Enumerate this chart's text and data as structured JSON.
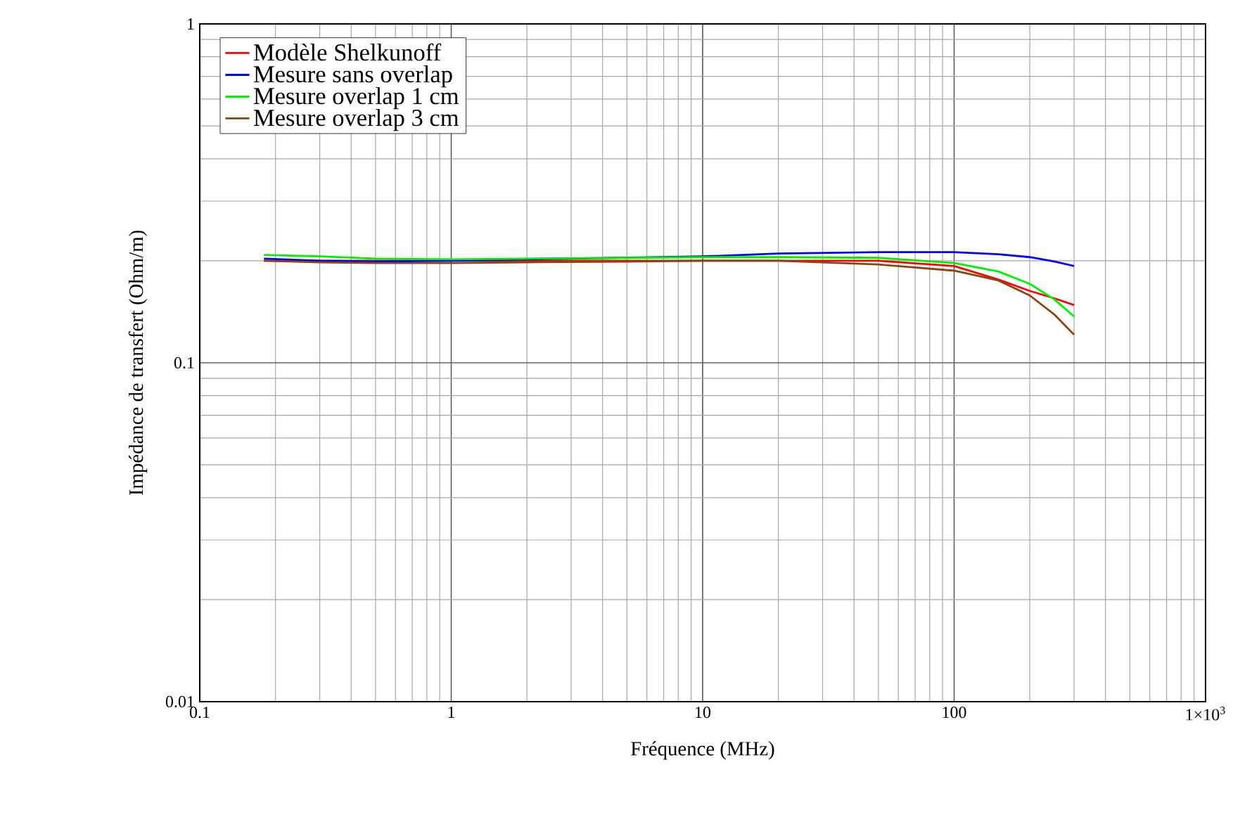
{
  "chart_data": {
    "type": "line",
    "xlabel": "Fréquence (MHz)",
    "ylabel": "Impédance de transfert (Ohm/m)",
    "log": "xy",
    "grid": true,
    "legend": "top left",
    "xlim": [
      0.1,
      1000
    ],
    "ylim": [
      0.01,
      1
    ],
    "xticks": [
      0.1,
      1,
      10,
      100,
      {
        "value": 1000,
        "label": "1×10$^{3}$"
      }
    ],
    "yticks": [
      0.01,
      0.1,
      1
    ],
    "x": [
      0.18,
      0.3,
      0.5,
      1,
      2,
      5,
      10,
      20,
      50,
      100,
      150,
      200,
      250,
      300
    ],
    "series": [
      {
        "name": "Modèle Shelkunoff",
        "color": "#ff0000",
        "values": [
          0.2,
          0.2,
          0.2,
          0.2,
          0.2,
          0.2,
          0.2,
          0.2,
          0.2,
          0.193,
          0.176,
          0.163,
          0.155,
          0.148
        ]
      },
      {
        "name": "Mesure sans overlap",
        "color": "#0000ff",
        "values": [
          0.203,
          0.2,
          0.199,
          0.2,
          0.202,
          null,
          0.206,
          0.21,
          0.212,
          0.212,
          0.209,
          0.205,
          0.199,
          0.193
        ]
      },
      {
        "name": "Mesure overlap 1 cm",
        "color": "#00ee00",
        "values": [
          0.208,
          0.206,
          0.203,
          0.202,
          0.203,
          0.204,
          0.205,
          0.205,
          0.204,
          0.197,
          0.186,
          0.171,
          0.154,
          0.137
        ]
      },
      {
        "name": "Mesure overlap 3 cm",
        "color": "#8b4513",
        "values": [
          0.2,
          0.198,
          0.197,
          0.197,
          0.198,
          0.199,
          0.2,
          0.2,
          0.195,
          0.187,
          0.175,
          0.158,
          0.139,
          0.121
        ]
      }
    ]
  }
}
